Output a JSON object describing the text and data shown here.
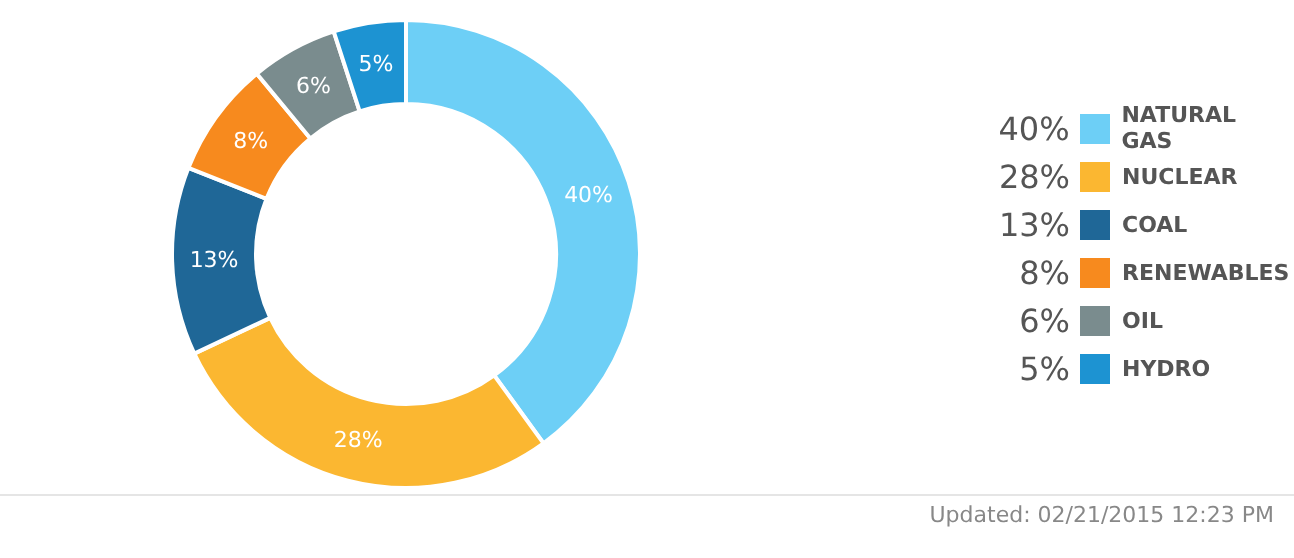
{
  "chart_data": {
    "type": "donut",
    "categories": [
      "NATURAL GAS",
      "NUCLEAR",
      "COAL",
      "RENEWABLES",
      "OIL",
      "HYDRO"
    ],
    "values": [
      40,
      28,
      13,
      8,
      6,
      5
    ],
    "value_labels": [
      "40%",
      "28%",
      "13%",
      "8%",
      "6%",
      "5%"
    ],
    "colors": [
      "#6dcff6",
      "#fbb731",
      "#1f6797",
      "#f78a1e",
      "#7a8c8e",
      "#1d93d2"
    ],
    "legend": "right",
    "annotations": [
      "Updated: 02/21/2015 12:23 PM"
    ]
  }
}
